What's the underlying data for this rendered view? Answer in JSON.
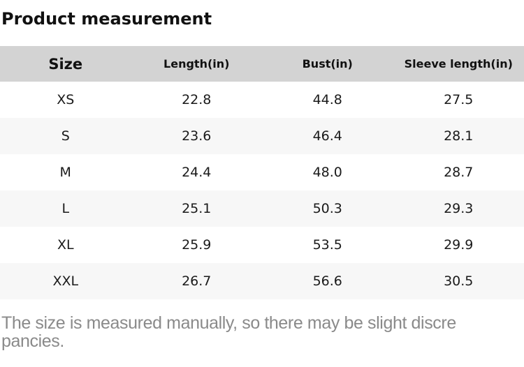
{
  "page": {
    "title": "Product measurement"
  },
  "table": {
    "headers": [
      "Size",
      "Length(in)",
      "Bust(in)",
      "Sleeve length(in)"
    ],
    "rows": [
      {
        "size": "XS",
        "length": "22.8",
        "bust": "44.8",
        "sleeve": "27.5"
      },
      {
        "size": "S",
        "length": "23.6",
        "bust": "46.4",
        "sleeve": "28.1"
      },
      {
        "size": "M",
        "length": "24.4",
        "bust": "48.0",
        "sleeve": "28.7"
      },
      {
        "size": "L",
        "length": "25.1",
        "bust": "50.3",
        "sleeve": "29.3"
      },
      {
        "size": "XL",
        "length": "25.9",
        "bust": "53.5",
        "sleeve": "29.9"
      },
      {
        "size": "XXL",
        "length": "26.7",
        "bust": "56.6",
        "sleeve": "30.5"
      }
    ]
  },
  "footer": {
    "note": "The size is measured manually, so there may be slight discrepancies.",
    "note_line1": "The size is measured manually, so there may be slight discre",
    "note_line2": "pancies."
  },
  "colors": {
    "header_bg": "#d3d3d3",
    "row_alt_bg": "#f7f7f7",
    "title_text": "#111111",
    "cell_text": "#1a1a1a",
    "note_text": "#8a8a8a"
  },
  "chart_data": {
    "type": "table",
    "title": "Product measurement",
    "categories": [
      "XS",
      "S",
      "M",
      "L",
      "XL",
      "XXL"
    ],
    "series": [
      {
        "name": "Length(in)",
        "values": [
          22.8,
          23.6,
          24.4,
          25.1,
          25.9,
          26.7
        ]
      },
      {
        "name": "Bust(in)",
        "values": [
          44.8,
          46.4,
          48.0,
          50.3,
          53.5,
          56.6
        ]
      },
      {
        "name": "Sleeve length(in)",
        "values": [
          27.5,
          28.1,
          28.7,
          29.3,
          29.9,
          30.5
        ]
      }
    ],
    "note": "The size is measured manually, so there may be slight discrepancies."
  }
}
